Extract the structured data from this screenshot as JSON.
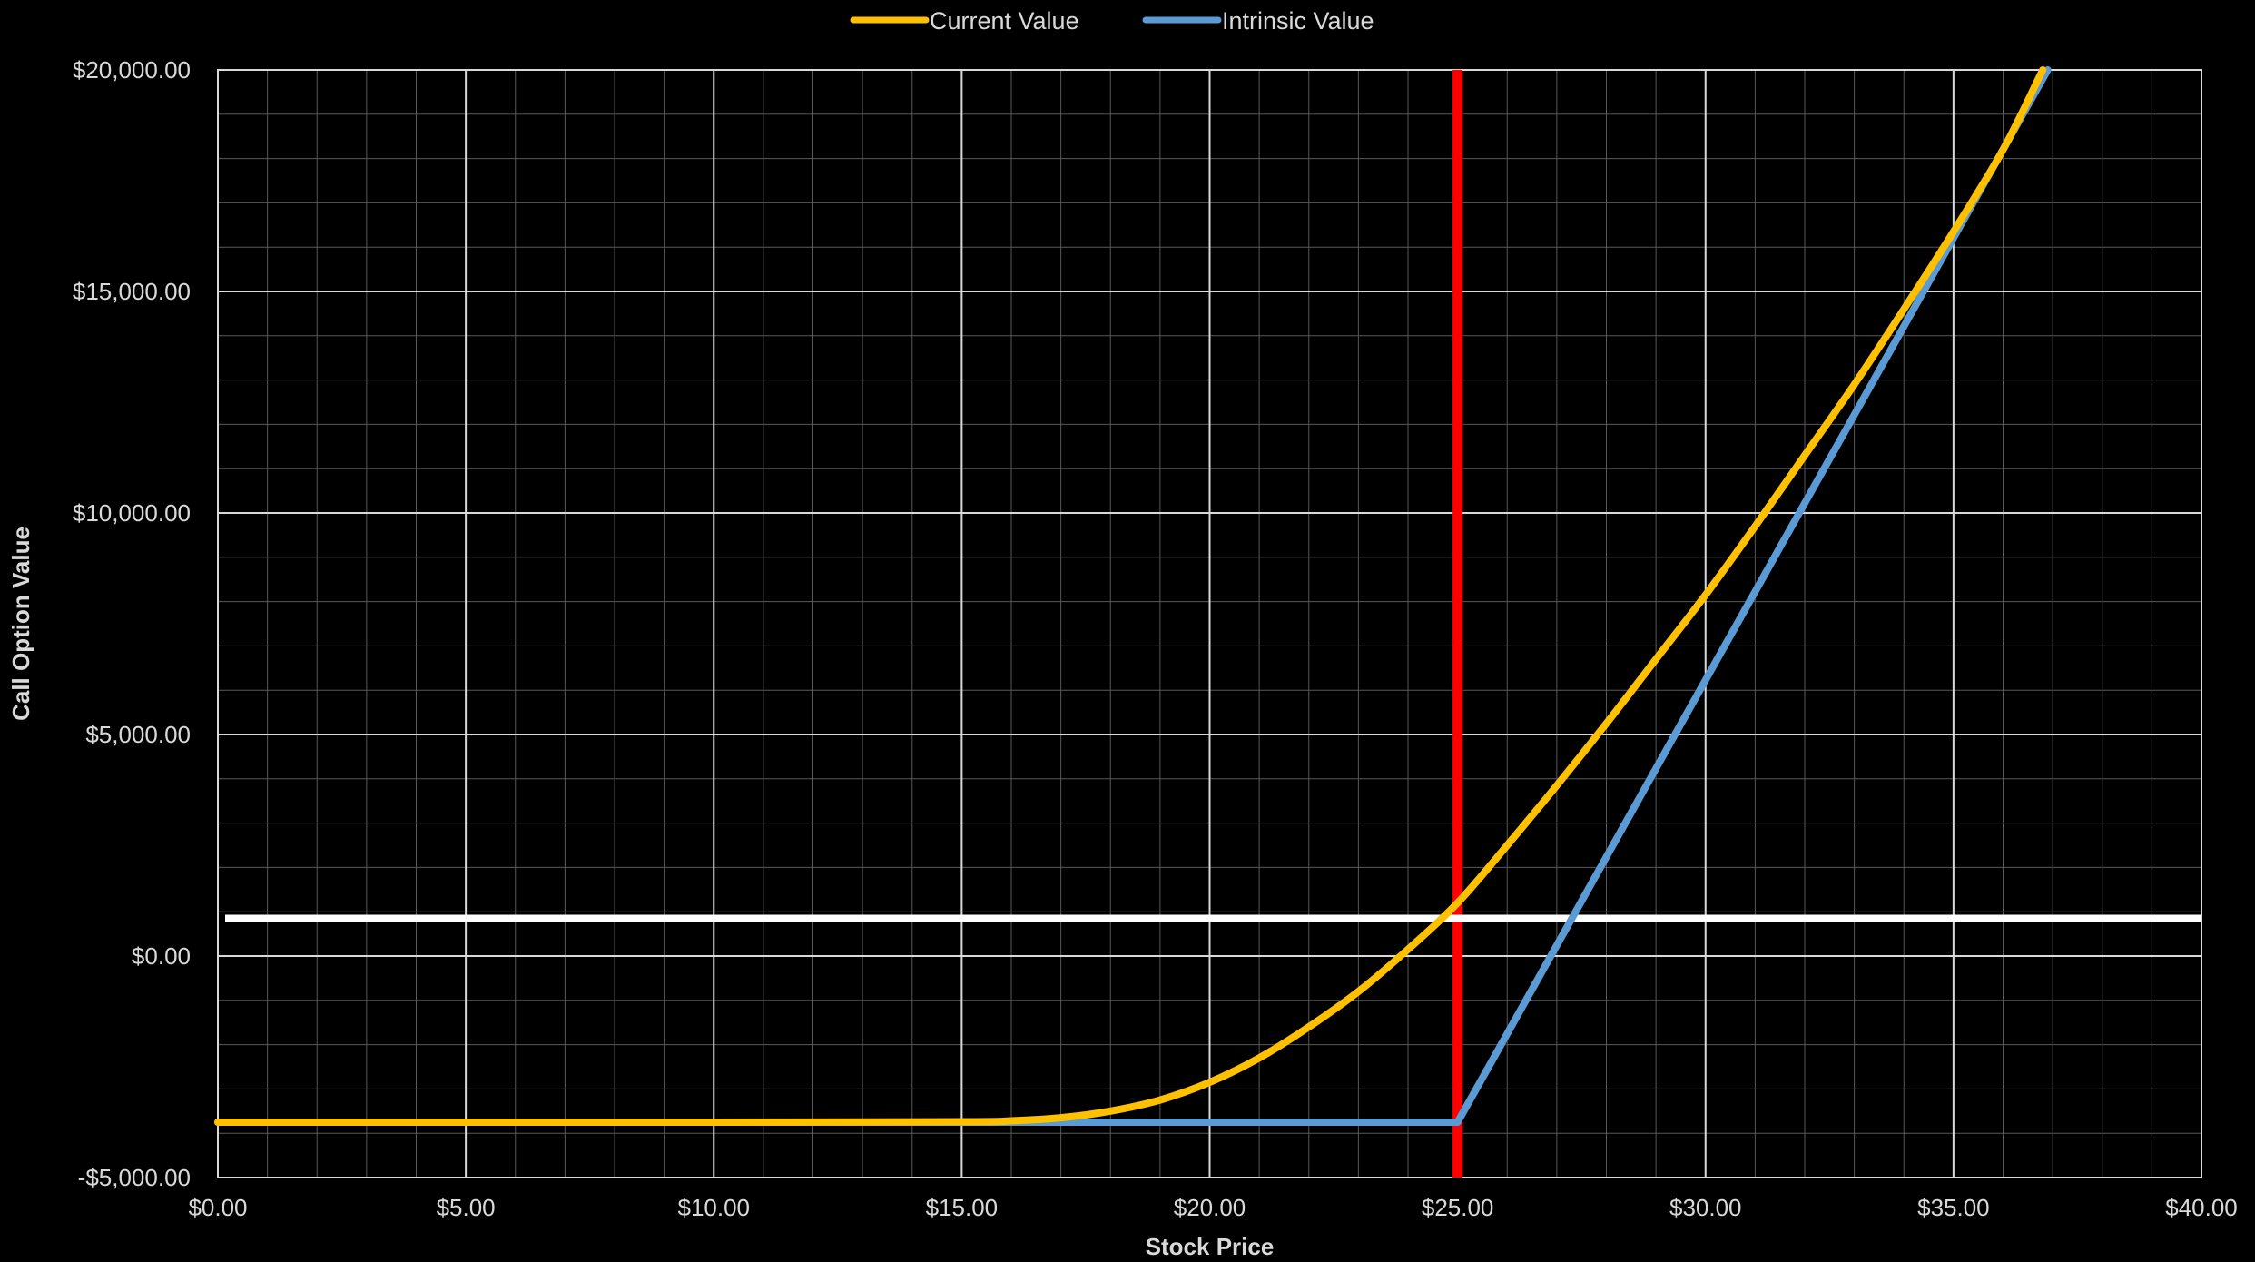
{
  "chart_data": {
    "type": "line",
    "xlabel": "Stock Price",
    "ylabel": "Call Option Value",
    "xlim": [
      0,
      40
    ],
    "ylim": [
      -5000,
      20000
    ],
    "x_ticks": [
      0,
      5,
      10,
      15,
      20,
      25,
      30,
      35,
      40
    ],
    "x_tick_labels": [
      "$0.00",
      "$5.00",
      "$10.00",
      "$15.00",
      "$20.00",
      "$25.00",
      "$30.00",
      "$35.00",
      "$40.00"
    ],
    "y_ticks": [
      -5000,
      0,
      5000,
      10000,
      15000,
      20000
    ],
    "y_tick_labels": [
      "-$5,000.00",
      "$0.00",
      "$5,000.00",
      "$10,000.00",
      "$15,000.00",
      "$20,000.00"
    ],
    "grid": "major and minor",
    "legend_position": "top-center",
    "series": [
      {
        "name": "Current Value",
        "color": "#ffc000",
        "x": [
          0,
          5,
          10,
          15,
          16,
          17,
          18,
          19,
          20,
          21,
          22,
          23,
          24,
          25,
          26,
          27,
          28,
          29,
          30,
          31,
          32,
          33,
          34,
          35,
          36,
          36.8
        ],
        "y": [
          -3750,
          -3750,
          -3750,
          -3740,
          -3720,
          -3650,
          -3500,
          -3250,
          -2850,
          -2300,
          -1600,
          -800,
          150,
          1200,
          2500,
          3850,
          5250,
          6700,
          8150,
          9700,
          11300,
          12900,
          14600,
          16350,
          18200,
          20000
        ]
      },
      {
        "name": "Intrinsic Value",
        "color": "#5b9bd5",
        "x": [
          0,
          5,
          10,
          15,
          20,
          25,
          36.9
        ],
        "y": [
          -3750,
          -3750,
          -3750,
          -3750,
          -3750,
          -3750,
          20000
        ]
      }
    ],
    "reference_lines": [
      {
        "orientation": "vertical",
        "x": 25,
        "color": "#ff0000"
      },
      {
        "orientation": "horizontal",
        "y": 850,
        "color": "#ffffff"
      }
    ]
  }
}
